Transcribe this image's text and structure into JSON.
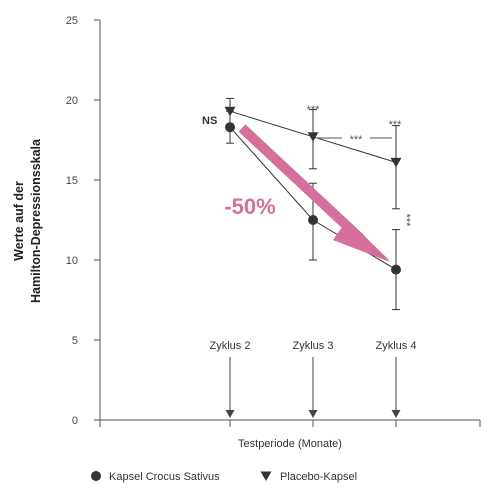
{
  "chart_data": {
    "type": "line",
    "xlabel": "Testperiode (Monate)",
    "ylabel_lines": [
      "Werte auf der",
      "Hamilton-Depressionsskala"
    ],
    "ylim": [
      0,
      25
    ],
    "yticks": [
      0,
      5,
      10,
      15,
      20,
      25
    ],
    "categories": [
      "Zyklus 2",
      "Zyklus 3",
      "Zyklus 4"
    ],
    "series": [
      {
        "name": "Kapsel Crocus Sativus",
        "marker": "circle",
        "values": [
          18.3,
          12.5,
          9.4
        ],
        "err": [
          [
            17.3,
            19.3
          ],
          [
            10.0,
            14.8
          ],
          [
            6.9,
            11.9
          ]
        ]
      },
      {
        "name": "Placebo-Kapsel",
        "marker": "triangle-down",
        "values": [
          19.3,
          17.7,
          16.1
        ],
        "err": [
          [
            18.3,
            20.1
          ],
          [
            15.7,
            19.4
          ],
          [
            13.2,
            18.4
          ]
        ]
      }
    ],
    "annotations": {
      "ns": "NS",
      "sig_cycle3": "***",
      "sig_cycle4_top": "***",
      "sig_between": "***",
      "sig_cycle4_vertical": "***",
      "reduction": "-50%"
    },
    "colors": {
      "arrow": "#d5709c",
      "reduction_text": "#d5709c",
      "series": "#333333",
      "axis": "#555555"
    },
    "legend_position": "bottom-left"
  }
}
